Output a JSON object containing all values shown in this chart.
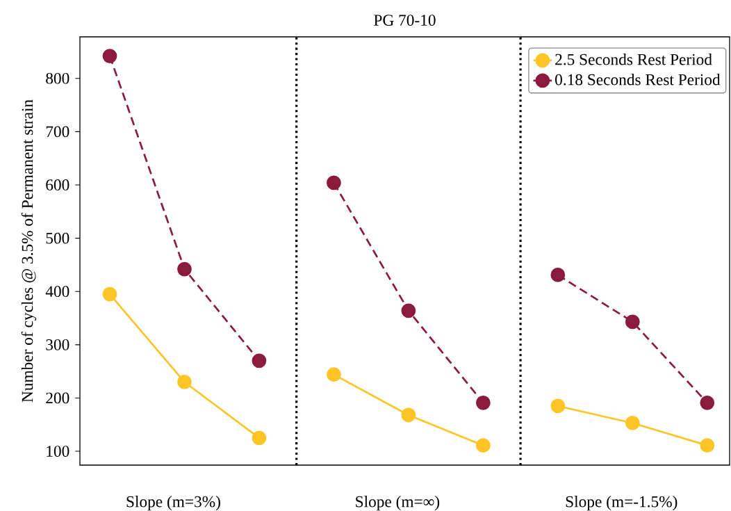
{
  "chart_data": {
    "type": "line",
    "title": "PG 70-10",
    "ylabel": "Number of cycles @ 3.5% of Permanent strain",
    "categories": [
      null,
      "Slope (m=3%)",
      null,
      null,
      "Slope (m=∞)",
      null,
      null,
      "Slope (m=-1.5%)",
      null
    ],
    "series": [
      {
        "name": "2.5 Seconds Rest Period",
        "color": "#ffc425",
        "line_style": "solid",
        "values": [
          395,
          230,
          125,
          244,
          168,
          111,
          185,
          153,
          111
        ]
      },
      {
        "name": "0.18 Seconds Rest Period",
        "color": "#8b1a3f",
        "line_style": "dashed",
        "values": [
          842,
          442,
          270,
          604,
          364,
          191,
          431,
          343,
          191
        ]
      }
    ],
    "ylim": [
      74,
      878
    ],
    "yticks": [
      100,
      200,
      300,
      400,
      500,
      600,
      700,
      800
    ],
    "marker": "circle",
    "legend": "top right",
    "grid": false
  }
}
